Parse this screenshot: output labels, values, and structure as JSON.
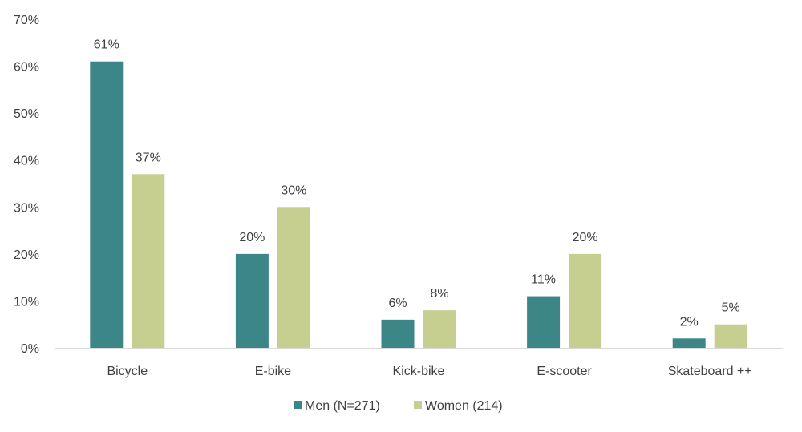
{
  "chart_data": {
    "type": "bar",
    "categories": [
      "Bicycle",
      "E-bike",
      "Kick-bike",
      "E-scooter",
      "Skateboard ++"
    ],
    "series": [
      {
        "name": "Men (N=271)",
        "values": [
          61,
          20,
          6,
          11,
          2
        ],
        "labels": [
          "61%",
          "20%",
          "6%",
          "11%",
          "2%"
        ],
        "color": "#3d8688"
      },
      {
        "name": "Women (214)",
        "values": [
          37,
          30,
          8,
          20,
          5
        ],
        "labels": [
          "37%",
          "30%",
          "8%",
          "20%",
          "5%"
        ],
        "color": "#c7cf90"
      }
    ],
    "title": "",
    "xlabel": "",
    "ylabel": "",
    "ylim": [
      0,
      70
    ],
    "yticks": [
      "0%",
      "10%",
      "20%",
      "30%",
      "40%",
      "50%",
      "60%",
      "70%"
    ],
    "grid": false,
    "legend_position": "bottom-center"
  }
}
